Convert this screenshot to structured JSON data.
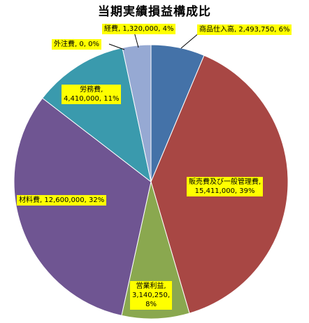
{
  "chart_data": {
    "type": "pie",
    "title": "当期実績損益構成比",
    "slices": [
      {
        "name": "商品仕入高",
        "value": 2493750,
        "percent": "6%",
        "value_label": "2,493,750",
        "color": "#4472a8"
      },
      {
        "name": "販売費及び一般管理費",
        "value": 15411000,
        "percent": "39%",
        "value_label": "15,411,000",
        "color": "#a84744"
      },
      {
        "name": "営業利益",
        "value": 3140250,
        "percent": "8%",
        "value_label": "3,140,250",
        "color": "#8aa84f"
      },
      {
        "name": "材料費",
        "value": 12600000,
        "percent": "32%",
        "value_label": "12,600,000",
        "color": "#6f5592"
      },
      {
        "name": "労務費",
        "value": 4410000,
        "percent": "11%",
        "value_label": "4,410,000",
        "color": "#3a9aad"
      },
      {
        "name": "外注費",
        "value": 0,
        "percent": "0%",
        "value_label": "0",
        "color": "#e8893a"
      },
      {
        "name": "経費",
        "value": 1320000,
        "percent": "4%",
        "value_label": "1,320,000",
        "color": "#96a9d3"
      }
    ],
    "labels": [
      {
        "text": "商品仕入高, 2,493,750, 6%"
      },
      {
        "line1": "販売費及び一般管理費,",
        "line2": "15,411,000, 39%"
      },
      {
        "line1": "営業利益,",
        "line2": "3,140,250,",
        "line3": "8%"
      },
      {
        "text": "材料費, 12,600,000, 32%"
      },
      {
        "line1": "労務費,",
        "line2": "4,410,000, 11%"
      },
      {
        "text": "外注費, 0, 0%"
      },
      {
        "text": "経費, 1,320,000, 4%"
      }
    ]
  }
}
